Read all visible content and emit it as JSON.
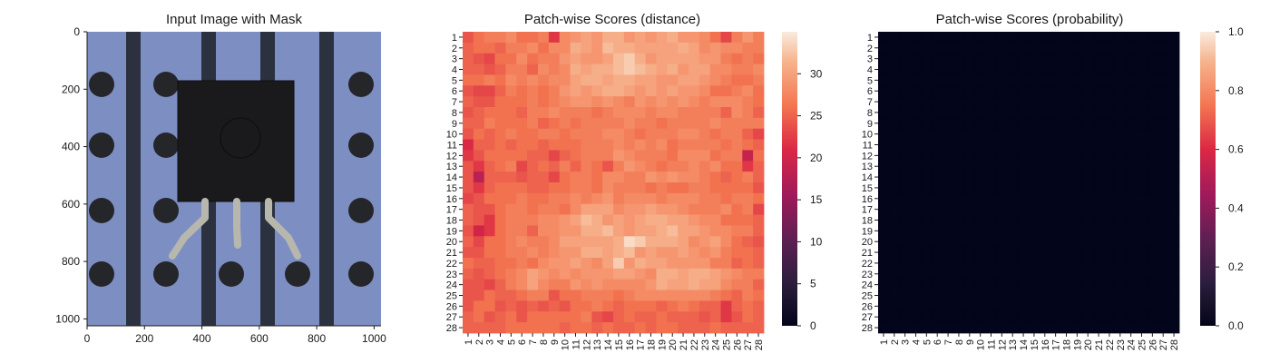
{
  "chart_data": [
    {
      "type": "image",
      "title": "Input Image with Mask",
      "xticks": [
        "0",
        "200",
        "400",
        "600",
        "800",
        "1000"
      ],
      "yticks": [
        "0",
        "200",
        "400",
        "600",
        "800",
        "1000"
      ],
      "xlim": [
        0,
        1024
      ],
      "ylim": [
        0,
        1024
      ],
      "colors": {
        "background": "#7d8fc2",
        "stripe": "#2c3140",
        "hole": "#25262a",
        "component": "#1a1a1c",
        "lead": "#b8b7ad"
      }
    },
    {
      "type": "heatmap",
      "title": "Patch-wise Scores (distance)",
      "rows": 28,
      "cols": 28,
      "xticks": [
        "1",
        "2",
        "3",
        "4",
        "5",
        "6",
        "7",
        "8",
        "9",
        "10",
        "11",
        "12",
        "13",
        "14",
        "15",
        "16",
        "17",
        "18",
        "19",
        "20",
        "21",
        "22",
        "23",
        "24",
        "25",
        "26",
        "27",
        "28"
      ],
      "yticks": [
        "1",
        "2",
        "3",
        "4",
        "5",
        "6",
        "7",
        "8",
        "9",
        "10",
        "11",
        "12",
        "13",
        "14",
        "15",
        "16",
        "17",
        "18",
        "19",
        "20",
        "21",
        "22",
        "23",
        "24",
        "25",
        "26",
        "27",
        "28"
      ],
      "colorbar": {
        "min": 0,
        "max": 35,
        "ticks": [
          "0",
          "5",
          "10",
          "15",
          "20",
          "25",
          "30"
        ]
      },
      "colormap": "rocket",
      "values": [
        [
          24,
          26,
          27,
          27,
          28,
          26,
          26,
          27,
          22,
          28,
          29,
          30,
          29,
          31,
          31,
          29,
          30,
          29,
          30,
          31,
          29,
          29,
          28,
          26,
          23,
          27,
          29,
          27
        ],
        [
          25,
          26,
          26,
          25,
          27,
          27,
          28,
          26,
          28,
          28,
          31,
          30,
          29,
          32,
          31,
          31,
          30,
          30,
          30,
          30,
          31,
          30,
          28,
          29,
          28,
          28,
          27,
          27
        ],
        [
          25,
          24,
          23,
          26,
          26,
          28,
          26,
          27,
          27,
          29,
          30,
          29,
          29,
          30,
          32,
          33,
          31,
          29,
          30,
          30,
          30,
          30,
          29,
          29,
          27,
          26,
          27,
          26
        ],
        [
          25,
          25,
          24,
          25,
          27,
          27,
          25,
          28,
          27,
          28,
          31,
          30,
          31,
          31,
          32,
          33,
          32,
          31,
          30,
          31,
          29,
          30,
          30,
          28,
          28,
          27,
          27,
          28
        ],
        [
          26,
          26,
          27,
          26,
          28,
          27,
          28,
          27,
          28,
          28,
          30,
          31,
          31,
          30,
          31,
          31,
          30,
          30,
          29,
          29,
          30,
          30,
          29,
          28,
          27,
          26,
          26,
          27
        ],
        [
          24,
          23,
          23,
          25,
          27,
          26,
          27,
          26,
          27,
          29,
          30,
          29,
          30,
          31,
          31,
          30,
          29,
          30,
          29,
          30,
          29,
          29,
          28,
          26,
          26,
          27,
          28,
          26
        ],
        [
          25,
          24,
          24,
          26,
          26,
          26,
          27,
          26,
          27,
          28,
          29,
          29,
          28,
          29,
          28,
          27,
          29,
          28,
          29,
          28,
          29,
          28,
          27,
          28,
          28,
          28,
          27,
          26
        ],
        [
          24,
          25,
          26,
          26,
          26,
          25,
          27,
          27,
          28,
          27,
          27,
          27,
          26,
          27,
          28,
          28,
          28,
          27,
          28,
          28,
          27,
          27,
          27,
          27,
          25,
          28,
          27,
          25
        ],
        [
          25,
          25,
          27,
          26,
          26,
          26,
          27,
          25,
          26,
          27,
          26,
          27,
          27,
          27,
          27,
          28,
          27,
          27,
          26,
          27,
          27,
          27,
          27,
          28,
          27,
          27,
          27,
          27
        ],
        [
          24,
          26,
          25,
          26,
          27,
          26,
          26,
          27,
          27,
          26,
          27,
          27,
          27,
          28,
          28,
          27,
          26,
          27,
          27,
          27,
          28,
          28,
          27,
          26,
          27,
          27,
          25,
          23
        ],
        [
          21,
          25,
          25,
          26,
          25,
          26,
          26,
          25,
          26,
          26,
          26,
          27,
          27,
          27,
          28,
          27,
          28,
          27,
          28,
          26,
          27,
          27,
          27,
          27,
          26,
          27,
          26,
          25
        ],
        [
          22,
          24,
          26,
          26,
          26,
          26,
          25,
          25,
          23,
          25,
          26,
          27,
          27,
          27,
          29,
          28,
          27,
          27,
          27,
          26,
          28,
          28,
          28,
          26,
          27,
          27,
          19,
          26
        ],
        [
          24,
          22,
          25,
          26,
          27,
          23,
          25,
          26,
          25,
          27,
          25,
          27,
          26,
          24,
          27,
          29,
          28,
          27,
          26,
          27,
          27,
          28,
          27,
          28,
          26,
          26,
          22,
          25
        ],
        [
          24,
          18,
          25,
          25,
          25,
          24,
          25,
          25,
          23,
          26,
          27,
          27,
          26,
          28,
          28,
          27,
          27,
          29,
          28,
          29,
          28,
          28,
          27,
          26,
          25,
          26,
          27,
          25
        ],
        [
          24,
          22,
          25,
          26,
          26,
          26,
          25,
          25,
          26,
          26,
          27,
          27,
          26,
          28,
          27,
          27,
          27,
          26,
          27,
          26,
          26,
          27,
          27,
          26,
          26,
          26,
          26,
          24
        ],
        [
          23,
          24,
          26,
          26,
          26,
          27,
          26,
          26,
          27,
          27,
          28,
          27,
          28,
          29,
          27,
          28,
          28,
          28,
          27,
          28,
          28,
          28,
          27,
          27,
          26,
          27,
          27,
          26
        ],
        [
          25,
          24,
          24,
          26,
          27,
          27,
          26,
          27,
          27,
          26,
          28,
          30,
          30,
          30,
          28,
          29,
          29,
          30,
          29,
          29,
          28,
          27,
          27,
          27,
          28,
          26,
          27,
          23
        ],
        [
          25,
          24,
          22,
          26,
          27,
          27,
          27,
          28,
          28,
          29,
          30,
          32,
          31,
          29,
          30,
          29,
          30,
          31,
          31,
          30,
          30,
          29,
          28,
          28,
          26,
          26,
          26,
          25
        ],
        [
          24,
          20,
          22,
          26,
          27,
          27,
          25,
          28,
          28,
          29,
          29,
          31,
          31,
          32,
          30,
          29,
          30,
          30,
          31,
          32,
          30,
          30,
          29,
          28,
          28,
          27,
          27,
          25
        ],
        [
          25,
          23,
          26,
          26,
          27,
          28,
          27,
          27,
          28,
          30,
          30,
          30,
          30,
          30,
          31,
          34,
          33,
          31,
          31,
          31,
          30,
          28,
          29,
          30,
          28,
          26,
          25,
          24
        ],
        [
          24,
          24,
          26,
          26,
          27,
          27,
          28,
          27,
          28,
          29,
          29,
          31,
          31,
          30,
          31,
          32,
          29,
          30,
          29,
          29,
          30,
          29,
          28,
          29,
          27,
          26,
          26,
          25
        ],
        [
          26,
          25,
          25,
          26,
          26,
          27,
          26,
          28,
          29,
          29,
          30,
          29,
          28,
          30,
          33,
          29,
          31,
          30,
          30,
          29,
          29,
          29,
          29,
          27,
          27,
          25,
          26,
          25
        ],
        [
          25,
          24,
          25,
          26,
          27,
          28,
          30,
          29,
          28,
          29,
          28,
          29,
          29,
          29,
          30,
          30,
          29,
          28,
          31,
          31,
          30,
          31,
          31,
          30,
          29,
          28,
          27,
          27
        ],
        [
          24,
          24,
          23,
          25,
          27,
          28,
          30,
          28,
          27,
          27,
          29,
          28,
          29,
          28,
          28,
          28,
          28,
          29,
          31,
          30,
          30,
          31,
          30,
          30,
          28,
          27,
          27,
          25
        ],
        [
          24,
          24,
          26,
          25,
          25,
          26,
          27,
          27,
          24,
          26,
          26,
          27,
          27,
          27,
          26,
          27,
          28,
          28,
          28,
          28,
          28,
          28,
          28,
          27,
          26,
          25,
          27,
          26
        ],
        [
          24,
          26,
          26,
          24,
          25,
          24,
          25,
          24,
          25,
          24,
          26,
          26,
          27,
          26,
          25,
          26,
          26,
          26,
          25,
          26,
          27,
          26,
          25,
          25,
          22,
          25,
          26,
          25
        ],
        [
          25,
          26,
          24,
          25,
          26,
          24,
          26,
          26,
          26,
          26,
          26,
          27,
          24,
          23,
          25,
          26,
          25,
          25,
          26,
          25,
          25,
          25,
          24,
          25,
          22,
          24,
          26,
          25
        ],
        [
          25,
          25,
          25,
          25,
          26,
          26,
          26,
          26,
          26,
          25,
          26,
          26,
          25,
          26,
          25,
          25,
          26,
          25,
          26,
          26,
          25,
          25,
          25,
          26,
          25,
          25,
          25,
          25
        ]
      ]
    },
    {
      "type": "heatmap",
      "title": "Patch-wise Scores (probability)",
      "rows": 28,
      "cols": 28,
      "xticks": [
        "1",
        "2",
        "3",
        "4",
        "5",
        "6",
        "7",
        "8",
        "9",
        "10",
        "11",
        "12",
        "13",
        "14",
        "15",
        "16",
        "17",
        "18",
        "19",
        "20",
        "21",
        "22",
        "23",
        "24",
        "25",
        "26",
        "27",
        "28"
      ],
      "yticks": [
        "1",
        "2",
        "3",
        "4",
        "5",
        "6",
        "7",
        "8",
        "9",
        "10",
        "11",
        "12",
        "13",
        "14",
        "15",
        "16",
        "17",
        "18",
        "19",
        "20",
        "21",
        "22",
        "23",
        "24",
        "25",
        "26",
        "27",
        "28"
      ],
      "colorbar": {
        "min": 0,
        "max": 1,
        "ticks": [
          "0.0",
          "0.2",
          "0.4",
          "0.6",
          "0.8",
          "1.0"
        ]
      },
      "colormap": "rocket",
      "uniform_value": 0.0
    }
  ]
}
